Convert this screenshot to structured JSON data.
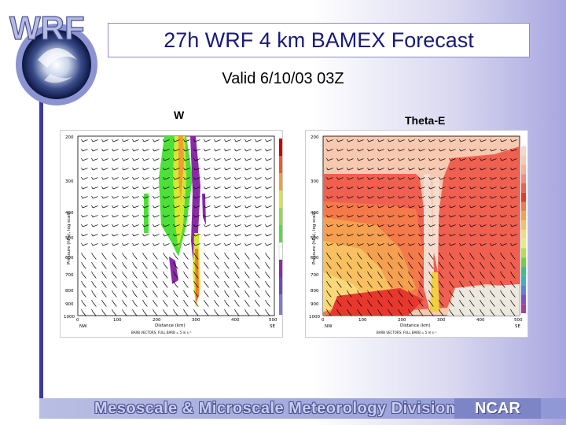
{
  "logo": {
    "text": "WRF"
  },
  "title": "27h WRF 4 km BAMEX Forecast",
  "subtitle": "Valid 6/10/03 03Z",
  "panels": [
    {
      "title": "W",
      "ylabel": "Pressure (hPa), log scale",
      "xlabel": "Distance (km)",
      "yticks": [
        "200",
        "300",
        "400",
        "500",
        "600",
        "700",
        "800",
        "900",
        "1000"
      ],
      "xticks": [
        "0",
        "100",
        "200",
        "300",
        "400",
        "500"
      ],
      "left_end": "NW",
      "right_end": "SE",
      "vector_note": "BARB VECTORS: FULL BARB = 5 m s⁻¹",
      "colorbar_unit": "cm s⁻¹",
      "colorbar_labels": [
        "1000",
        "800",
        "600",
        "400",
        "200",
        "100",
        "0",
        "-100",
        "-200",
        "-300"
      ]
    },
    {
      "title": "Theta-E",
      "ylabel": "Pressure (hPa), log scale",
      "xlabel": "Distance (km)",
      "yticks": [
        "200",
        "300",
        "400",
        "500",
        "600",
        "700",
        "800",
        "900",
        "1000"
      ],
      "xticks": [
        "0",
        "100",
        "200",
        "300",
        "400",
        "500"
      ],
      "left_end": "NW",
      "right_end": "SE",
      "vector_note": "BARB VECTORS: FULL BARB = 5 m s⁻¹",
      "colorbar_unit": "K",
      "colorbar_labels": [
        "360",
        "355",
        "350",
        "345",
        "340",
        "335",
        "330",
        "325",
        "320",
        "315",
        "310",
        "305",
        "300",
        "295",
        "290",
        "285",
        "280",
        "275",
        "270"
      ]
    }
  ],
  "footer": {
    "division": "Mesoscale & Microscale Meteorology Division",
    "org": "NCAR"
  },
  "colors": {
    "title_text": "#1a1a7a",
    "accent_bar": "#3a3aa0",
    "footer": "#8f97d6"
  }
}
